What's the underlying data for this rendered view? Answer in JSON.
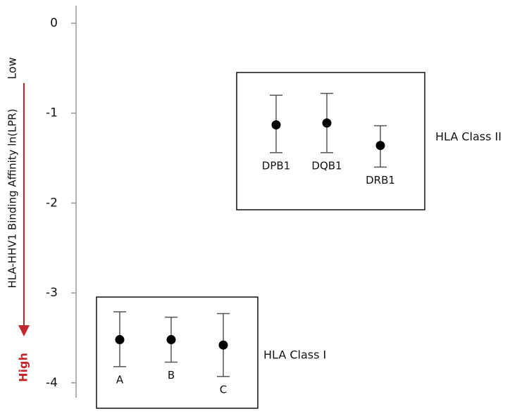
{
  "chart_data": {
    "type": "errorbar",
    "y_label": "HLA-HHV1 Binding Affinity ln(LPR)",
    "y_low_label": "Low",
    "y_high_label": "High",
    "ylim": [
      -4.15,
      0.2
    ],
    "yticks": [
      0,
      -1,
      -2,
      -3,
      -4
    ],
    "groups": [
      {
        "name": "HLA Class II",
        "categories": [
          "DPB1",
          "DQB1",
          "DRB1"
        ],
        "values": [
          -1.13,
          -1.11,
          -1.36
        ],
        "lower": [
          -1.44,
          -1.44,
          -1.6
        ],
        "upper": [
          -0.8,
          -0.78,
          -1.14
        ]
      },
      {
        "name": "HLA Class I",
        "categories": [
          "A",
          "B",
          "C"
        ],
        "values": [
          -3.52,
          -3.52,
          -3.58
        ],
        "lower": [
          -3.82,
          -3.77,
          -3.93
        ],
        "upper": [
          -3.21,
          -3.27,
          -3.23
        ]
      }
    ]
  }
}
